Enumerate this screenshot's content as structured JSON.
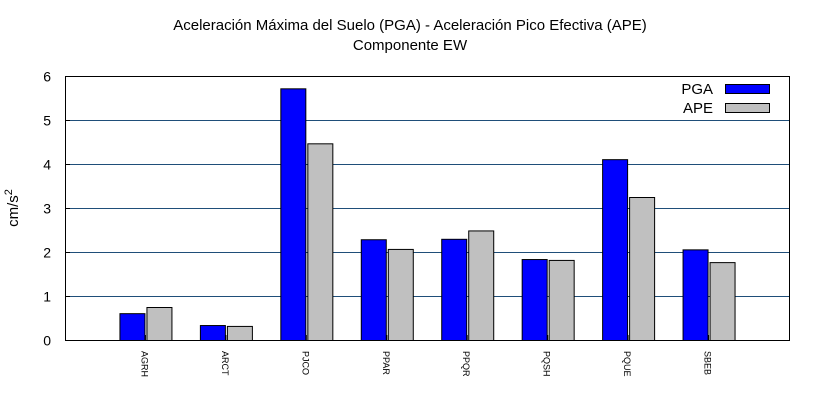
{
  "chart_data": {
    "type": "bar",
    "title": "Aceleración Máxima del Suelo (PGA) -  Aceleración Pico Efectiva (APE)",
    "subtitle": "Componente EW",
    "xlabel": "",
    "ylabel": "cm/s",
    "ylabel_superscript": "2",
    "ylim": [
      0,
      6
    ],
    "yticks": [
      0,
      1,
      2,
      3,
      4,
      5,
      6
    ],
    "grid": true,
    "legend_position": "top-right",
    "categories": [
      "AGRH",
      "ARCT",
      "PJCO",
      "PPAR",
      "PPQR",
      "PQSH",
      "PQUE",
      "SBEB"
    ],
    "series": [
      {
        "name": "PGA",
        "color": "#0000ff",
        "values": [
          0.61,
          0.34,
          5.72,
          2.29,
          2.3,
          1.84,
          4.11,
          2.06
        ]
      },
      {
        "name": "APE",
        "color": "#c0c0c0",
        "values": [
          0.75,
          0.32,
          4.47,
          2.07,
          2.49,
          1.82,
          3.25,
          1.77
        ]
      }
    ]
  }
}
